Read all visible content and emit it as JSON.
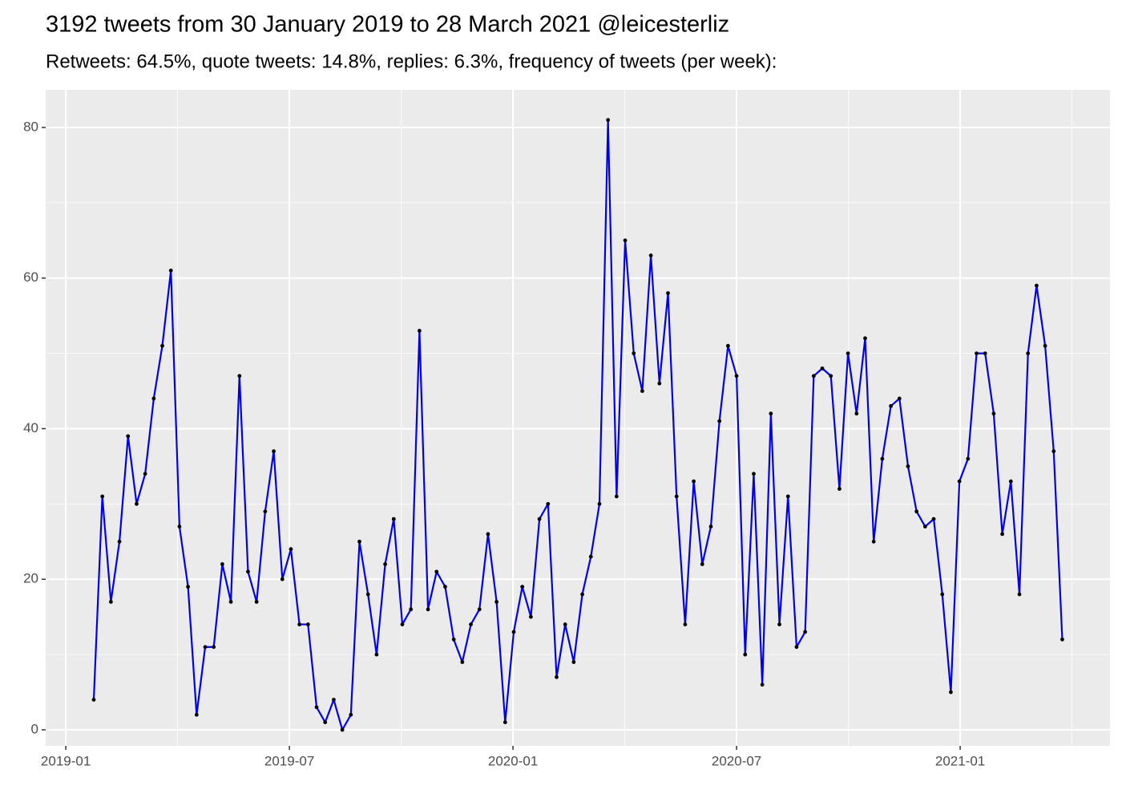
{
  "chart_data": {
    "type": "line",
    "title": "3192 tweets from 30 January 2019 to 28 March 2021 @leicesterliz",
    "subtitle": "Retweets: 64.5%, quote tweets: 14.8%, replies: 6.3%, frequency of tweets (per week):",
    "x": [
      0.75,
      0.98,
      1.21,
      1.44,
      1.67,
      1.9,
      2.13,
      2.36,
      2.59,
      2.82,
      3.05,
      3.28,
      3.51,
      3.74,
      3.97,
      4.2,
      4.43,
      4.66,
      4.89,
      5.12,
      5.35,
      5.58,
      5.81,
      6.04,
      6.27,
      6.5,
      6.73,
      6.96,
      7.19,
      7.42,
      7.65,
      7.88,
      8.11,
      8.34,
      8.57,
      8.8,
      9.03,
      9.26,
      9.49,
      9.72,
      9.95,
      10.18,
      10.41,
      10.64,
      10.87,
      11.1,
      11.33,
      11.56,
      11.79,
      12.02,
      12.25,
      12.48,
      12.71,
      12.94,
      13.17,
      13.4,
      13.63,
      13.86,
      14.09,
      14.32,
      14.55,
      14.78,
      15.01,
      15.24,
      15.47,
      15.7,
      15.93,
      16.16,
      16.39,
      16.62,
      16.85,
      17.08,
      17.31,
      17.54,
      17.77,
      18.0,
      18.23,
      18.46,
      18.69,
      18.92,
      19.15,
      19.38,
      19.61,
      19.84,
      20.07,
      20.3,
      20.53,
      20.76,
      20.99,
      21.22,
      21.45,
      21.68,
      21.91,
      22.14,
      22.37,
      22.6,
      22.83,
      23.06,
      23.29,
      23.52,
      23.75,
      23.98,
      24.21,
      24.44,
      24.67,
      24.9,
      25.13,
      25.36,
      25.59,
      25.82,
      26.05,
      26.28,
      26.51,
      26.74
    ],
    "series": [
      {
        "color": "#0000EE",
        "point_color": "#000000",
        "values": [
          4,
          31,
          17,
          25,
          39,
          30,
          34,
          44,
          51,
          61,
          27,
          19,
          2,
          11,
          11,
          22,
          17,
          47,
          21,
          17,
          29,
          37,
          20,
          24,
          14,
          14,
          3,
          1,
          4,
          0,
          2,
          25,
          18,
          10,
          22,
          28,
          14,
          16,
          53,
          16,
          21,
          19,
          12,
          9,
          14,
          16,
          26,
          17,
          1,
          13,
          19,
          15,
          28,
          30,
          7,
          14,
          9,
          18,
          23,
          30,
          81,
          31,
          65,
          50,
          45,
          63,
          46,
          58,
          31,
          14,
          33,
          22,
          27,
          41,
          51,
          47,
          10,
          34,
          6,
          42,
          14,
          31,
          11,
          13,
          47,
          48,
          47,
          32,
          50,
          42,
          52,
          25,
          36,
          43,
          44,
          35,
          29,
          27,
          28,
          18,
          5,
          33,
          36,
          50,
          50,
          42,
          26,
          33,
          18,
          50,
          59,
          51,
          37,
          12
        ]
      }
    ],
    "xlim": [
      -0.54,
      28.02
    ],
    "xticks": [
      {
        "value": 0,
        "label": "2019-01"
      },
      {
        "value": 6,
        "label": "2019-07"
      },
      {
        "value": 12,
        "label": "2020-01"
      },
      {
        "value": 18,
        "label": "2020-07"
      },
      {
        "value": 24,
        "label": "2021-01"
      }
    ],
    "x_minor_ticks": [
      3,
      9,
      15,
      21,
      27
    ],
    "ylim": [
      -2.13,
      85
    ],
    "yticks": [
      0,
      20,
      40,
      60,
      80
    ],
    "y_minor_ticks": [
      10,
      30,
      50,
      70
    ],
    "grid": true
  }
}
